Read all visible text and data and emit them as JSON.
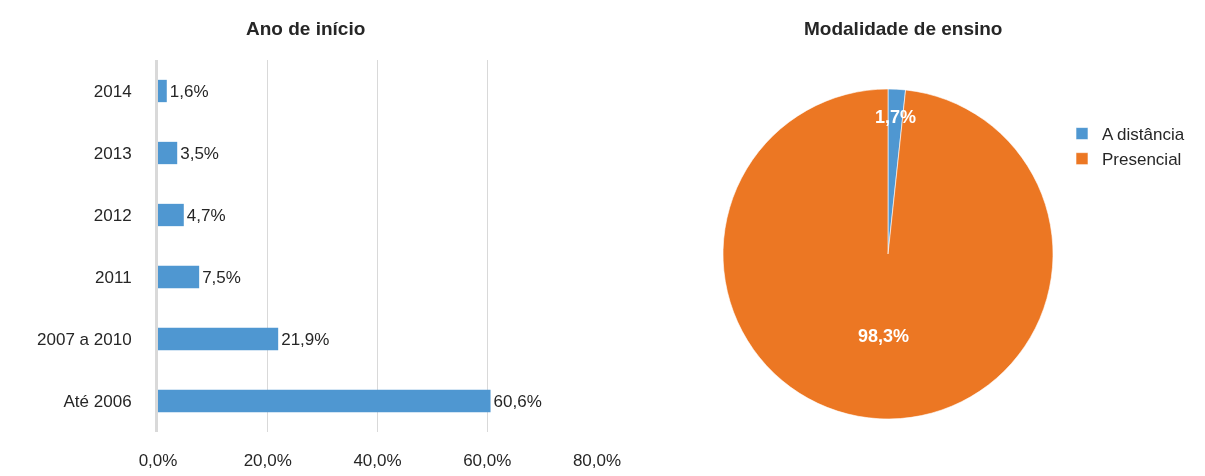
{
  "chart_data": [
    {
      "type": "bar",
      "orientation": "horizontal",
      "title": "Ano de início",
      "categories": [
        "2014",
        "2013",
        "2012",
        "2011",
        "2007 a 2010",
        "Até 2006"
      ],
      "values": [
        1.6,
        3.5,
        4.7,
        7.5,
        21.9,
        60.6
      ],
      "value_labels": [
        "1,6%",
        "3,5%",
        "4,7%",
        "7,5%",
        "21,9%",
        "60,6%"
      ],
      "color": "#4f97d1",
      "xlim": [
        0,
        80
      ],
      "xticks": [
        {
          "value": 0,
          "label": "0,0%"
        },
        {
          "value": 20,
          "label": "20,0%"
        },
        {
          "value": 40,
          "label": "40,0%"
        },
        {
          "value": 60,
          "label": "60,0%"
        },
        {
          "value": 80,
          "label": "80,0%"
        }
      ],
      "grid": "x"
    },
    {
      "type": "pie",
      "title": "Modalidade de ensino",
      "categories": [
        "A distância",
        "Presencial"
      ],
      "values": [
        1.7,
        98.3
      ],
      "value_labels": [
        "1,7%",
        "98,3%"
      ],
      "colors": [
        "#4f97d1",
        "#ec7723"
      ],
      "legend": "right"
    }
  ]
}
